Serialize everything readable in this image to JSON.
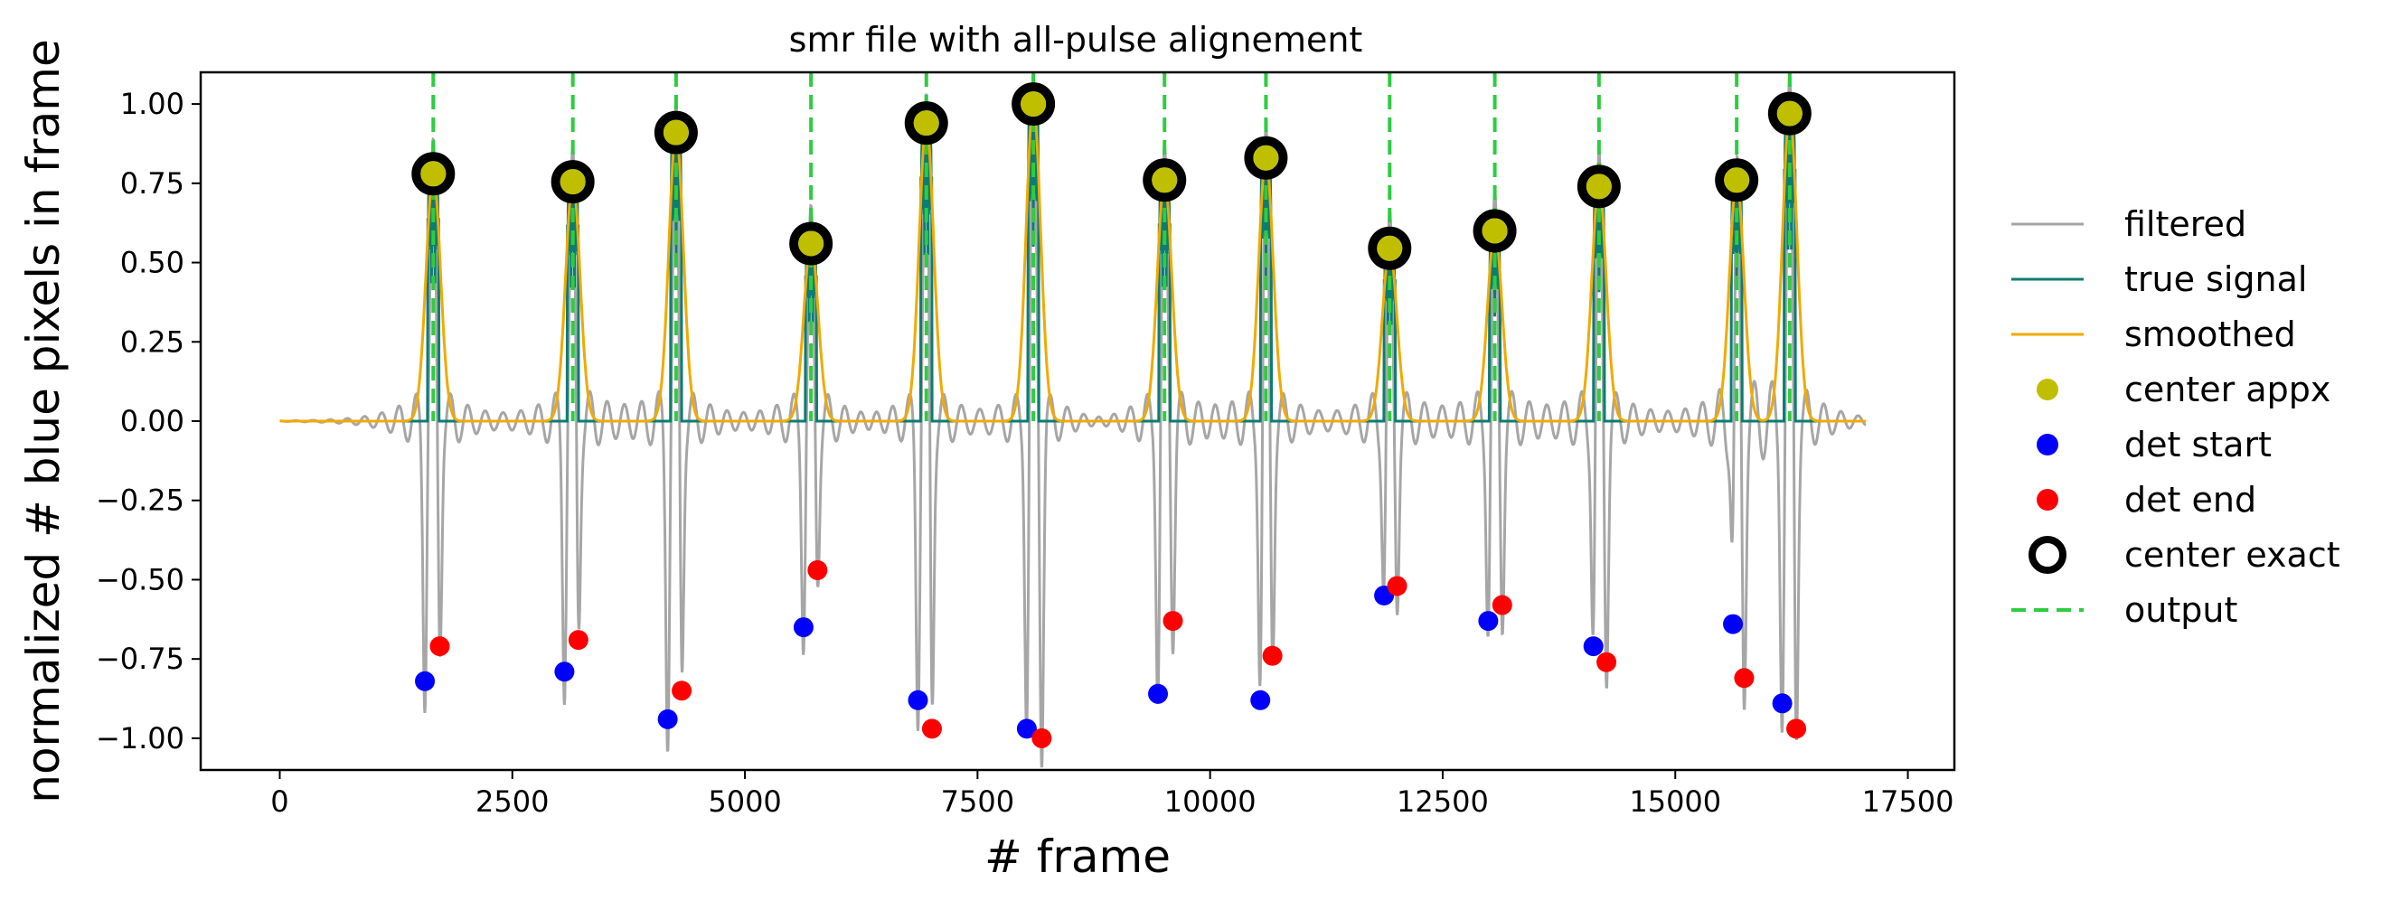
{
  "chart_data": {
    "type": "line",
    "title": "smr file with all-pulse alignement",
    "xlabel": "# frame",
    "ylabel": "normalized # blue pixels in frame",
    "xlim": [
      -850,
      18000
    ],
    "ylim": [
      -1.1,
      1.1
    ],
    "xticks": [
      0,
      2500,
      5000,
      7500,
      10000,
      12500,
      15000,
      17500
    ],
    "yticks": [
      1.0,
      0.75,
      0.5,
      0.25,
      0.0,
      -0.25,
      -0.5,
      -0.75,
      -1.0
    ],
    "xtick_labels": [
      "0",
      "2500",
      "5000",
      "7500",
      "10000",
      "12500",
      "15000",
      "17500"
    ],
    "ytick_labels": [
      "1.00",
      "0.75",
      "0.50",
      "0.25",
      "0.00",
      "−0.25",
      "−0.50",
      "−0.75",
      "−1.00"
    ],
    "grid": false,
    "legend_position": "right-outside",
    "x_range_signal": [
      0,
      17050
    ],
    "pulses": [
      {
        "center": 1650,
        "peak": 0.78,
        "start_x": 1560,
        "start_y": -0.82,
        "end_x": 1720,
        "end_y": -0.71
      },
      {
        "center": 3150,
        "peak": 0.755,
        "start_x": 3060,
        "start_y": -0.79,
        "end_x": 3210,
        "end_y": -0.69
      },
      {
        "center": 4260,
        "peak": 0.91,
        "start_x": 4170,
        "start_y": -0.94,
        "end_x": 4320,
        "end_y": -0.85
      },
      {
        "center": 5710,
        "peak": 0.56,
        "start_x": 5630,
        "start_y": -0.65,
        "end_x": 5780,
        "end_y": -0.47
      },
      {
        "center": 6950,
        "peak": 0.94,
        "start_x": 6860,
        "start_y": -0.88,
        "end_x": 7010,
        "end_y": -0.97
      },
      {
        "center": 8100,
        "peak": 1.0,
        "start_x": 8030,
        "start_y": -0.97,
        "end_x": 8190,
        "end_y": -1.0
      },
      {
        "center": 9510,
        "peak": 0.76,
        "start_x": 9440,
        "start_y": -0.86,
        "end_x": 9600,
        "end_y": -0.63
      },
      {
        "center": 10600,
        "peak": 0.83,
        "start_x": 10540,
        "start_y": -0.88,
        "end_x": 10670,
        "end_y": -0.74
      },
      {
        "center": 11930,
        "peak": 0.545,
        "start_x": 11870,
        "start_y": -0.55,
        "end_x": 12010,
        "end_y": -0.52
      },
      {
        "center": 13060,
        "peak": 0.6,
        "start_x": 12990,
        "start_y": -0.63,
        "end_x": 13140,
        "end_y": -0.58
      },
      {
        "center": 14180,
        "peak": 0.74,
        "start_x": 14120,
        "start_y": -0.71,
        "end_x": 14260,
        "end_y": -0.76
      },
      {
        "center": 15660,
        "peak": 0.76,
        "start_x": 15620,
        "start_y": -0.64,
        "end_x": 15740,
        "end_y": -0.81
      },
      {
        "center": 16230,
        "peak": 0.97,
        "start_x": 16150,
        "start_y": -0.89,
        "end_x": 16300,
        "end_y": -0.97
      }
    ],
    "series": [
      {
        "name": "filtered",
        "color": "#a6a6a6",
        "style": "solid"
      },
      {
        "name": "true signal",
        "color": "#0b7d73",
        "style": "solid"
      },
      {
        "name": "smoothed",
        "color": "#f2a900",
        "style": "solid"
      },
      {
        "name": "center appx",
        "color": "#bfbf00",
        "style": "marker"
      },
      {
        "name": "det start",
        "color": "#0000ff",
        "style": "marker"
      },
      {
        "name": "det end",
        "color": "#ff0000",
        "style": "marker"
      },
      {
        "name": "center exact",
        "color": "#000000",
        "style": "ring"
      },
      {
        "name": "output",
        "color": "#2ecc40",
        "style": "dashed"
      }
    ]
  }
}
